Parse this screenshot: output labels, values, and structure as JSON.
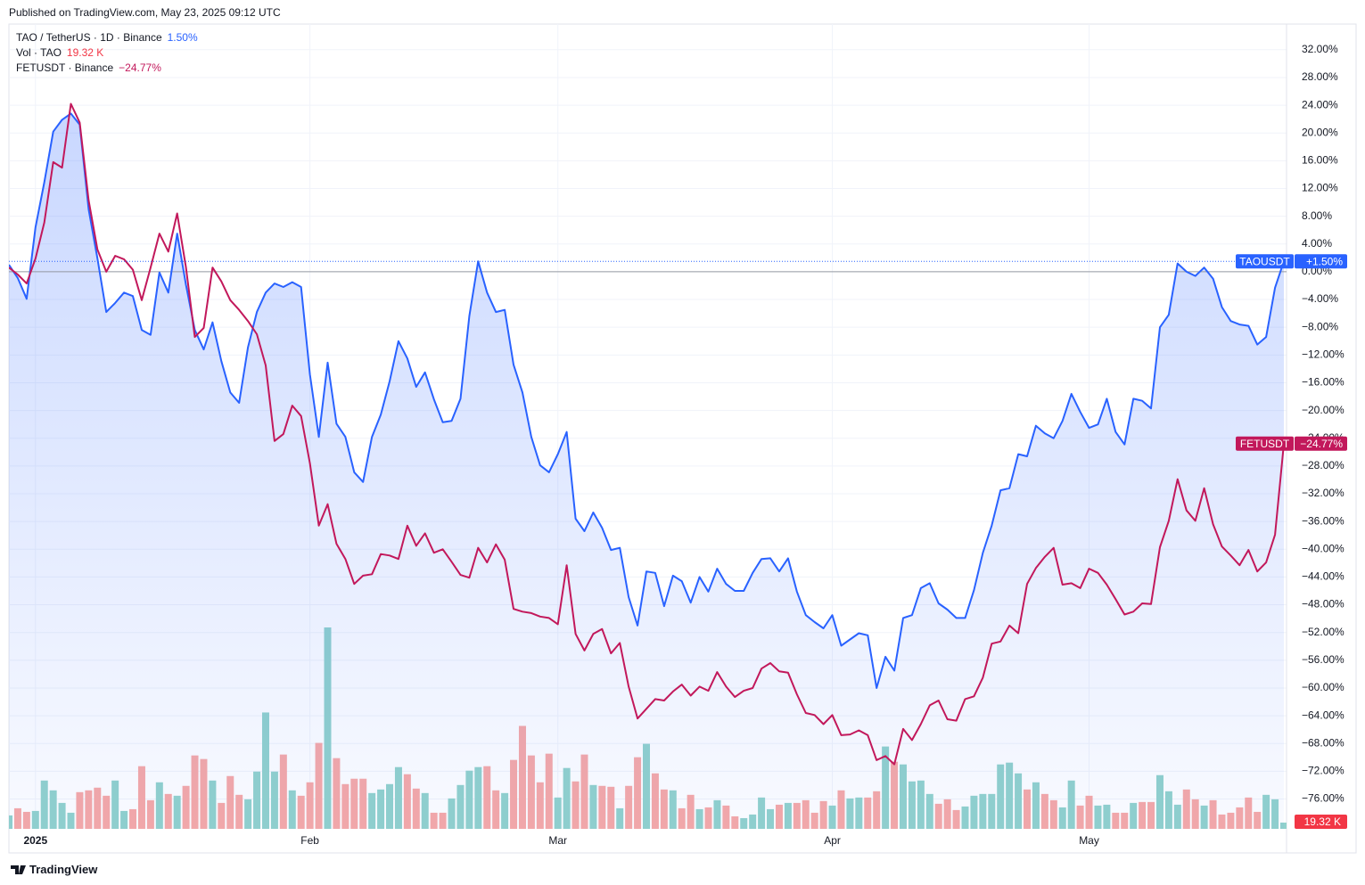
{
  "header": "Published on TradingView.com, May 23, 2025 09:12 UTC",
  "footer": "TradingView",
  "chart_data": {
    "type": "line",
    "categories": [
      null,
      null,
      null,
      "2025",
      null,
      null,
      null,
      null,
      null,
      null,
      null,
      null,
      null,
      null,
      null,
      null,
      null,
      null,
      null,
      null,
      null,
      null,
      null,
      null,
      null,
      null,
      null,
      null,
      null,
      null,
      null,
      null,
      null,
      null,
      "Feb",
      null,
      null,
      null,
      null,
      null,
      null,
      null,
      null,
      null,
      null,
      null,
      null,
      null,
      null,
      null,
      null,
      null,
      null,
      null,
      null,
      null,
      null,
      null,
      null,
      null,
      null,
      null,
      "Mar",
      null,
      null,
      null,
      null,
      null,
      null,
      null,
      null,
      null,
      null,
      null,
      null,
      null,
      null,
      null,
      null,
      null,
      null,
      null,
      null,
      null,
      null,
      null,
      null,
      null,
      null,
      null,
      null,
      null,
      null,
      "Apr",
      null,
      null,
      null,
      null,
      null,
      null,
      null,
      null,
      null,
      null,
      null,
      null,
      null,
      null,
      null,
      null,
      null,
      null,
      null,
      null,
      null,
      null,
      null,
      null,
      null,
      null,
      null,
      null,
      "May",
      null,
      null,
      null,
      null,
      null,
      null,
      null,
      null,
      null,
      null,
      null,
      null,
      null,
      null,
      null,
      null,
      null,
      null,
      null,
      null,
      null,
      null
    ],
    "series": [
      {
        "name": "TAOUSDT",
        "legend": "TAO / TetherUS · 1D · Binance",
        "last_label": "1.50%",
        "tag_label": "+1.50%",
        "color": "#2962ff",
        "area": true,
        "values": [
          1.0,
          -0.9,
          -3.9,
          6.4,
          12.9,
          20.2,
          21.9,
          22.8,
          21.2,
          9.0,
          1.9,
          -5.8,
          -4.5,
          -3.0,
          -3.5,
          -8.4,
          -9.1,
          -0.1,
          -3.0,
          5.5,
          -1.9,
          -8.4,
          -11.2,
          -7.3,
          -12.9,
          -17.4,
          -18.9,
          -10.9,
          -5.8,
          -3.0,
          -1.7,
          -2.2,
          -1.5,
          -2.2,
          -14.8,
          -23.8,
          -13.1,
          -21.9,
          -23.8,
          -28.9,
          -30.3,
          -23.8,
          -20.6,
          -15.8,
          -10.0,
          -12.5,
          -16.6,
          -14.5,
          -18.4,
          -21.7,
          -21.5,
          -18.3,
          -6.4,
          1.5,
          -3.0,
          -5.8,
          -5.5,
          -13.4,
          -17.4,
          -23.8,
          -27.9,
          -28.9,
          -26.3,
          -23.1,
          -35.6,
          -37.4,
          -34.7,
          -36.9,
          -40.1,
          -39.8,
          -46.9,
          -51.0,
          -43.2,
          -43.4,
          -48.2,
          -43.8,
          -44.6,
          -47.7,
          -44.0,
          -46.1,
          -42.8,
          -45.0,
          -46.0,
          -46.0,
          -43.4,
          -41.4,
          -41.3,
          -43.2,
          -41.3,
          -46.1,
          -49.5,
          -50.5,
          -51.4,
          -49.5,
          -53.9,
          -53.0,
          -52.1,
          -52.4,
          -60.0,
          -55.5,
          -57.5,
          -49.9,
          -49.5,
          -45.6,
          -44.9,
          -47.8,
          -48.7,
          -49.9,
          -49.9,
          -45.9,
          -40.5,
          -36.6,
          -31.5,
          -31.2,
          -26.3,
          -26.6,
          -22.2,
          -23.3,
          -24.0,
          -21.5,
          -17.6,
          -20.2,
          -22.5,
          -22.0,
          -18.3,
          -23.1,
          -24.9,
          -18.3,
          -18.6,
          -19.7,
          -8.0,
          -6.2,
          1.2,
          0.0,
          -0.6,
          0.6,
          -1.0,
          -5.1,
          -7.1,
          -7.6,
          -7.8,
          -10.5,
          -9.4,
          -2.3,
          1.5
        ]
      },
      {
        "name": "FETUSDT",
        "legend": "FETUSDT · Binance",
        "last_label": "−24.77%",
        "tag_label": "−24.77%",
        "color": "#c2185b",
        "values": [
          0.6,
          -0.4,
          -1.7,
          1.9,
          7.1,
          15.8,
          15.0,
          24.2,
          21.5,
          10.3,
          3.2,
          0.0,
          2.3,
          1.8,
          0.3,
          -4.1,
          0.6,
          5.5,
          2.9,
          8.4,
          0.6,
          -9.4,
          -8.1,
          0.6,
          -1.4,
          -4.1,
          -5.5,
          -7.1,
          -9.0,
          -13.5,
          -24.4,
          -23.4,
          -19.3,
          -20.8,
          -27.6,
          -36.6,
          -33.5,
          -39.2,
          -41.4,
          -45.0,
          -43.8,
          -43.6,
          -40.7,
          -40.9,
          -41.4,
          -36.6,
          -39.5,
          -37.7,
          -40.5,
          -40.0,
          -41.8,
          -43.7,
          -44.1,
          -39.8,
          -41.9,
          -39.3,
          -41.5,
          -48.6,
          -49.0,
          -49.2,
          -49.7,
          -49.9,
          -50.8,
          -42.3,
          -52.2,
          -54.6,
          -52.2,
          -51.5,
          -55.0,
          -53.5,
          -59.8,
          -64.4,
          -63.0,
          -61.6,
          -61.8,
          -60.5,
          -59.5,
          -61.1,
          -59.8,
          -60.4,
          -57.7,
          -59.8,
          -61.3,
          -60.4,
          -60.0,
          -57.2,
          -56.4,
          -57.6,
          -57.8,
          -60.9,
          -63.6,
          -63.9,
          -65.2,
          -63.9,
          -66.8,
          -66.7,
          -66.1,
          -66.8,
          -70.4,
          -69.8,
          -71.0,
          -65.9,
          -67.5,
          -65.2,
          -62.5,
          -61.8,
          -64.5,
          -64.7,
          -61.6,
          -61.2,
          -58.5,
          -53.6,
          -53.3,
          -51.0,
          -52.1,
          -45.0,
          -42.7,
          -41.1,
          -39.8,
          -45.1,
          -44.9,
          -45.6,
          -42.8,
          -43.4,
          -45.1,
          -47.2,
          -49.4,
          -49.0,
          -47.8,
          -47.9,
          -39.7,
          -35.9,
          -29.9,
          -34.4,
          -35.9,
          -31.2,
          -36.4,
          -39.6,
          -40.9,
          -42.3,
          -40.1,
          -43.2,
          -41.9,
          -37.9,
          -24.77
        ]
      }
    ],
    "volume": {
      "name": "Vol · TAO",
      "last_label": "19.32 K",
      "tag_label": "19.32 K",
      "up_color": "#92d2cc",
      "down_color": "#f7a9a7",
      "label_color": "#f23645",
      "values": [
        41.4,
        63.5,
        52.4,
        55.2,
        149,
        118.7,
        80,
        49.7,
        113.2,
        118.7,
        127,
        102.1,
        149,
        55.2,
        60.7,
        193.2,
        88.3,
        143.5,
        107.6,
        102.1,
        132.5,
        226.3,
        215.3,
        149,
        80,
        162.8,
        104.9,
        91.1,
        176.6,
        358.8,
        176.6,
        229.1,
        118.7,
        102.1,
        143.5,
        265,
        621,
        218,
        138,
        154.6,
        154.6,
        110.4,
        121.4,
        138,
        190.4,
        168.4,
        124.2,
        110.4,
        49.7,
        49.7,
        93.8,
        135.2,
        179.4,
        190.4,
        193.2,
        118.7,
        110.4,
        212.5,
        317.4,
        226.3,
        143.5,
        231.8,
        96.6,
        187.7,
        146.3,
        229.1,
        135.2,
        132.5,
        129.7,
        63.5,
        132.5,
        220.8,
        262.2,
        171.1,
        121.4,
        118.7,
        63.5,
        104.9,
        60.7,
        66.2,
        88.3,
        71.8,
        38.6,
        33.1,
        44.2,
        96.6,
        60.7,
        74.5,
        80,
        80,
        88.3,
        49.7,
        85.6,
        71.8,
        118.7,
        93.8,
        96.6,
        96.6,
        115.9,
        253.9,
        207,
        198.7,
        146.3,
        149,
        107.6,
        77.3,
        91.1,
        58,
        69,
        102.1,
        107.6,
        107.6,
        198.7,
        204.2,
        171.1,
        121.4,
        143.5,
        107.6,
        88.3,
        66.2,
        149,
        71.8,
        102.1,
        71.8,
        74.5,
        49.7,
        49.7,
        80,
        82.8,
        82.8,
        165.6,
        115.9,
        74.5,
        121.4,
        91.1,
        71.8,
        88.3,
        44.2,
        49.7,
        66.2,
        96.6,
        52.4,
        104.9,
        91.1,
        19.32
      ]
    },
    "ylim": [
      -80.3,
      35.7
    ],
    "yticks": [
      {
        "value": 32,
        "label": "32.00%"
      },
      {
        "value": 28,
        "label": "28.00%"
      },
      {
        "value": 24,
        "label": "24.00%"
      },
      {
        "value": 20,
        "label": "20.00%"
      },
      {
        "value": 16,
        "label": "16.00%"
      },
      {
        "value": 12,
        "label": "12.00%"
      },
      {
        "value": 8,
        "label": "8.00%"
      },
      {
        "value": 4,
        "label": "4.00%"
      },
      {
        "value": 0,
        "label": "0.00%"
      },
      {
        "value": -4,
        "label": "−4.00%"
      },
      {
        "value": -8,
        "label": "−8.00%"
      },
      {
        "value": -12,
        "label": "−12.00%"
      },
      {
        "value": -16,
        "label": "−16.00%"
      },
      {
        "value": -20,
        "label": "−20.00%"
      },
      {
        "value": -24,
        "label": "−24.00%"
      },
      {
        "value": -28,
        "label": "−28.00%"
      },
      {
        "value": -32,
        "label": "−32.00%"
      },
      {
        "value": -36,
        "label": "−36.00%"
      },
      {
        "value": -40,
        "label": "−40.00%"
      },
      {
        "value": -44,
        "label": "−44.00%"
      },
      {
        "value": -48,
        "label": "−48.00%"
      },
      {
        "value": -52,
        "label": "−52.00%"
      },
      {
        "value": -56,
        "label": "−56.00%"
      },
      {
        "value": -60,
        "label": "−60.00%"
      },
      {
        "value": -64,
        "label": "−64.00%"
      },
      {
        "value": -68,
        "label": "−68.00%"
      },
      {
        "value": -72,
        "label": "−72.00%"
      },
      {
        "value": -76,
        "label": "−76.00%"
      }
    ],
    "grid": true
  }
}
